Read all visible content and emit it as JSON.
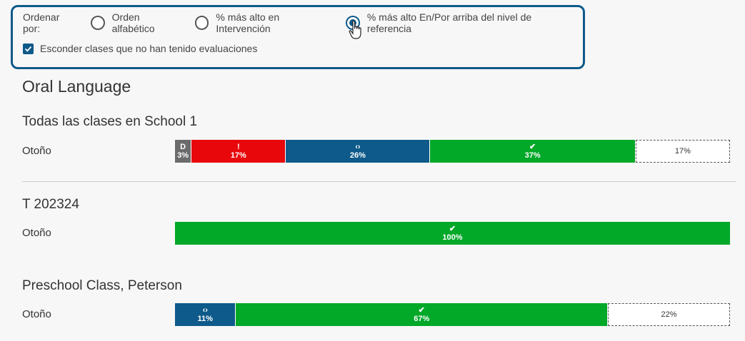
{
  "sort": {
    "label": "Ordenar por:",
    "options": [
      {
        "label": "Orden alfabético",
        "checked": false
      },
      {
        "label": "% más alto en Intervención",
        "checked": false
      },
      {
        "label": "% más alto En/Por arriba del nivel de referencia",
        "checked": true
      }
    ],
    "hide_checkbox": {
      "label": "Esconder clases que no han tenido evaluaciones",
      "checked": true
    }
  },
  "section": {
    "title": "Oral Language"
  },
  "groups": [
    {
      "title": "Todas las clases en School 1",
      "row_label": "Otoño",
      "segments": [
        {
          "kind": "gray",
          "symbol": "D",
          "pct": "3%",
          "value": 3
        },
        {
          "kind": "red",
          "symbol": "!",
          "pct": "17%",
          "value": 17
        },
        {
          "kind": "blue",
          "symbol": "‹›",
          "pct": "26%",
          "value": 26
        },
        {
          "kind": "green",
          "symbol": "✔",
          "pct": "37%",
          "value": 37
        },
        {
          "kind": "empty",
          "symbol": "",
          "pct": "17%",
          "value": 17
        }
      ]
    },
    {
      "title": "T 202324",
      "row_label": "Otoño",
      "segments": [
        {
          "kind": "green",
          "symbol": "✔",
          "pct": "100%",
          "value": 100
        }
      ]
    },
    {
      "title": "Preschool Class, Peterson",
      "row_label": "Otoño",
      "segments": [
        {
          "kind": "blue",
          "symbol": "‹›",
          "pct": "11%",
          "value": 11
        },
        {
          "kind": "green",
          "symbol": "✔",
          "pct": "67%",
          "value": 67
        },
        {
          "kind": "empty",
          "symbol": "",
          "pct": "22%",
          "value": 22
        }
      ]
    }
  ],
  "colors": {
    "accent": "#0e5a8a",
    "gray": "#6b6b6b",
    "red": "#e8080c",
    "blue": "#0e5a8a",
    "green": "#02a828"
  }
}
